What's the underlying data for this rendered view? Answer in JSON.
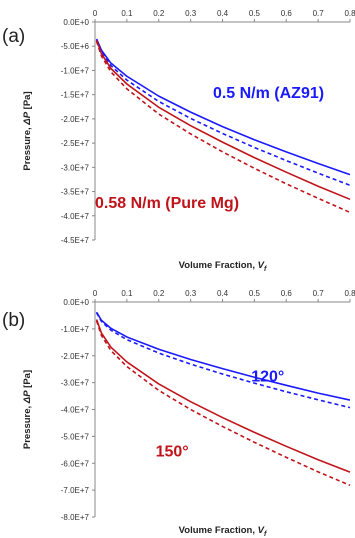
{
  "chart_data": [
    {
      "panel_label": "(a)",
      "type": "line",
      "xlabel_main": "Volume Fraction, ",
      "xlabel_var": "V",
      "xlabel_sub": "f",
      "ylabel_main": "Pressure, ",
      "ylabel_var": "ΔP",
      "ylabel_unit": " [Pa]",
      "xlim": [
        0,
        0.8
      ],
      "ylim": [
        -45000000,
        0
      ],
      "x_ticks": [
        "0",
        "0.1",
        "0.2",
        "0.3",
        "0.4",
        "0.5",
        "0.6",
        "0.7",
        "0.8"
      ],
      "y_ticks": [
        "0.0E+0",
        "-5.0E+6",
        "-1.0E+7",
        "-1.5E+7",
        "-2.0E+7",
        "-2.5E+7",
        "-3.0E+7",
        "-3.5E+7",
        "-4.0E+7",
        "-4.5E+7"
      ],
      "x_axis_position": "top",
      "grid": false,
      "series": [
        {
          "color": "#1a1aff",
          "dash": false,
          "x": [
            0.005,
            0.02,
            0.05,
            0.1,
            0.2,
            0.3,
            0.4,
            0.5,
            0.6,
            0.7,
            0.8
          ],
          "y": [
            -3500000,
            -5800000,
            -8500000,
            -11200000,
            -15300000,
            -18600000,
            -21600000,
            -24300000,
            -26800000,
            -29200000,
            -31500000
          ]
        },
        {
          "color": "#1a1aff",
          "dash": true,
          "x": [
            0.005,
            0.02,
            0.05,
            0.1,
            0.2,
            0.3,
            0.4,
            0.5,
            0.6,
            0.7,
            0.8
          ],
          "y": [
            -3700000,
            -6200000,
            -9000000,
            -12000000,
            -16400000,
            -19900000,
            -23000000,
            -25900000,
            -28600000,
            -31200000,
            -33700000
          ]
        },
        {
          "color": "#c0141a",
          "dash": false,
          "x": [
            0.005,
            0.02,
            0.05,
            0.1,
            0.2,
            0.3,
            0.4,
            0.5,
            0.6,
            0.7,
            0.8
          ],
          "y": [
            -3800000,
            -6500000,
            -9600000,
            -12800000,
            -17600000,
            -21400000,
            -24800000,
            -28000000,
            -31000000,
            -33900000,
            -36600000
          ]
        },
        {
          "color": "#c0141a",
          "dash": true,
          "x": [
            0.005,
            0.02,
            0.05,
            0.1,
            0.2,
            0.3,
            0.4,
            0.5,
            0.6,
            0.7,
            0.8
          ],
          "y": [
            -4000000,
            -7000000,
            -10300000,
            -13800000,
            -19000000,
            -23100000,
            -26800000,
            -30200000,
            -33400000,
            -36400000,
            -39300000
          ]
        }
      ],
      "annotations": [
        {
          "text": "0.5 N/m (AZ91)",
          "color": "#1a1aff",
          "x": 0.37,
          "y": -15700000
        },
        {
          "text": "0.58 N/m (Pure Mg)",
          "color": "#c0141a",
          "x": 0.0,
          "y": -38400000
        }
      ]
    },
    {
      "panel_label": "(b)",
      "type": "line",
      "xlabel_main": "Volume Fraction, ",
      "xlabel_var": "V",
      "xlabel_sub": "f",
      "ylabel_main": "Pressure, ",
      "ylabel_var": "ΔP",
      "ylabel_unit": " [Pa]",
      "xlim": [
        0,
        0.8
      ],
      "ylim": [
        -80000000,
        0
      ],
      "x_ticks": [
        "0",
        "0.1",
        "0.2",
        "0.3",
        "0.4",
        "0.5",
        "0.6",
        "0.7",
        "0.8"
      ],
      "y_ticks": [
        "0.0E+0",
        "-1.0E+7",
        "-2.0E+7",
        "-3.0E+7",
        "-4.0E+7",
        "-5.0E+7",
        "-6.0E+7",
        "-7.0E+7",
        "-8.0E+7"
      ],
      "x_axis_position": "top",
      "grid": false,
      "series": [
        {
          "color": "#1a1aff",
          "dash": false,
          "x": [
            0.005,
            0.02,
            0.05,
            0.1,
            0.2,
            0.3,
            0.4,
            0.5,
            0.6,
            0.7,
            0.8
          ],
          "y": [
            -3800000,
            -6800000,
            -9800000,
            -13000000,
            -17600000,
            -21400000,
            -24800000,
            -28000000,
            -31000000,
            -33900000,
            -36500000
          ]
        },
        {
          "color": "#1a1aff",
          "dash": true,
          "x": [
            0.005,
            0.02,
            0.05,
            0.1,
            0.2,
            0.3,
            0.4,
            0.5,
            0.6,
            0.7,
            0.8
          ],
          "y": [
            -4000000,
            -7200000,
            -10500000,
            -14000000,
            -19000000,
            -23100000,
            -26800000,
            -30200000,
            -33400000,
            -36400000,
            -39300000
          ]
        },
        {
          "color": "#c0141a",
          "dash": false,
          "x": [
            0.005,
            0.02,
            0.05,
            0.1,
            0.2,
            0.3,
            0.4,
            0.5,
            0.6,
            0.7,
            0.8
          ],
          "y": [
            -6500000,
            -11500000,
            -16800000,
            -22300000,
            -30500000,
            -37100000,
            -43000000,
            -48500000,
            -53700000,
            -58700000,
            -63300000
          ]
        },
        {
          "color": "#c0141a",
          "dash": true,
          "x": [
            0.005,
            0.02,
            0.05,
            0.1,
            0.2,
            0.3,
            0.4,
            0.5,
            0.6,
            0.7,
            0.8
          ],
          "y": [
            -7000000,
            -12400000,
            -18100000,
            -24000000,
            -32900000,
            -40000000,
            -46300000,
            -52200000,
            -57800000,
            -63200000,
            -68200000
          ]
        }
      ],
      "annotations": [
        {
          "text": "120°",
          "color": "#1a1aff",
          "x": 0.49,
          "y": -29500000
        },
        {
          "text": "150°",
          "color": "#c0141a",
          "x": 0.19,
          "y": -57500000
        }
      ]
    }
  ]
}
